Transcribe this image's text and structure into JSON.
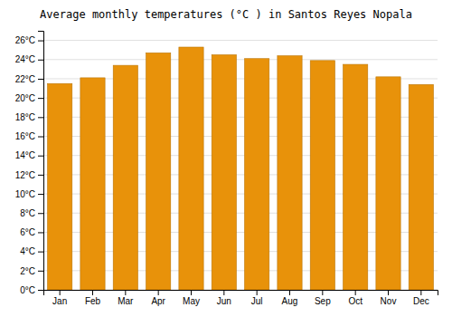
{
  "chart_data": {
    "type": "bar",
    "title": "Average monthly temperatures (°C ) in Santos Reyes Nopala",
    "categories": [
      "Jan",
      "Feb",
      "Mar",
      "Apr",
      "May",
      "Jun",
      "Jul",
      "Aug",
      "Sep",
      "Oct",
      "Nov",
      "Dec"
    ],
    "values": [
      21.5,
      22.1,
      23.4,
      24.7,
      25.3,
      24.5,
      24.1,
      24.4,
      23.9,
      23.5,
      22.2,
      21.4
    ],
    "color": "#E8920A",
    "ylim": [
      0,
      27
    ],
    "yticks": [
      {
        "value": 0,
        "label": "0°C"
      },
      {
        "value": 2,
        "label": "2°C"
      },
      {
        "value": 4,
        "label": "4°C"
      },
      {
        "value": 6,
        "label": "6°C"
      },
      {
        "value": 8,
        "label": "8°C"
      },
      {
        "value": 10,
        "label": "10°C"
      },
      {
        "value": 12,
        "label": "12°C"
      },
      {
        "value": 14,
        "label": "14°C"
      },
      {
        "value": 16,
        "label": "16°C"
      },
      {
        "value": 18,
        "label": "18°C"
      },
      {
        "value": 20,
        "label": "20°C"
      },
      {
        "value": 22,
        "label": "22°C"
      },
      {
        "value": 24,
        "label": "24°C"
      },
      {
        "value": 26,
        "label": "26°C"
      }
    ],
    "grid": true
  }
}
